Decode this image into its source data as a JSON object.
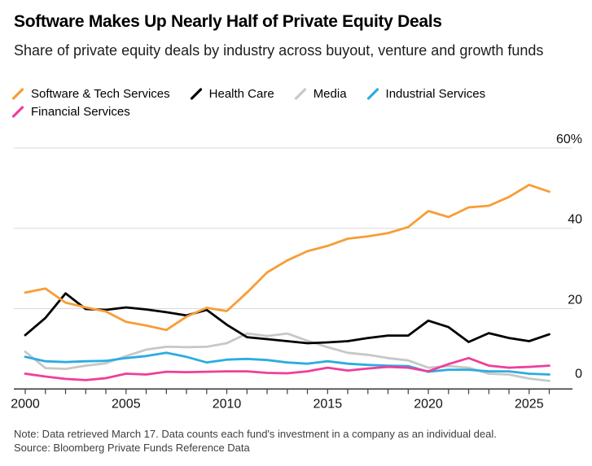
{
  "header": {
    "title": "Software Makes Up Nearly Half of Private Equity Deals",
    "subtitle": "Share of private equity deals by industry across buyout, venture and growth funds"
  },
  "chart_data": {
    "type": "line",
    "title": "Software Makes Up Nearly Half of Private Equity Deals",
    "x": [
      2000,
      2001,
      2002,
      2003,
      2004,
      2005,
      2006,
      2007,
      2008,
      2009,
      2010,
      2011,
      2012,
      2013,
      2014,
      2015,
      2016,
      2017,
      2018,
      2019,
      2020,
      2021,
      2022,
      2023,
      2024,
      2025,
      2026
    ],
    "series": [
      {
        "name": "Software & Tech Services",
        "color": "#F79D37",
        "values": [
          24,
          25,
          21.5,
          20.3,
          19.3,
          16.7,
          15.8,
          14.7,
          18,
          20.2,
          19.4,
          24,
          29,
          32,
          34.3,
          35.6,
          37.4,
          38,
          38.8,
          40.3,
          44.3,
          42.8,
          45.2,
          45.6,
          47.8,
          50.8,
          49.1
        ]
      },
      {
        "name": "Health Care",
        "color": "#000000",
        "values": [
          13.4,
          17.7,
          23.8,
          19.9,
          19.7,
          20.3,
          19.8,
          19.1,
          18.3,
          19.7,
          16,
          12.9,
          12.4,
          11.9,
          11.4,
          11.6,
          11.9,
          12.7,
          13.3,
          13.3,
          17,
          15.4,
          11.7,
          13.9,
          12.7,
          11.9,
          13.6
        ]
      },
      {
        "name": "Media",
        "color": "#C7C7C7",
        "values": [
          9.3,
          5.2,
          5,
          5.8,
          6.4,
          8.2,
          9.8,
          10.5,
          10.4,
          10.5,
          11.4,
          13.8,
          13.2,
          13.8,
          12,
          10.4,
          9,
          8.5,
          7.7,
          7.1,
          5.3,
          5.7,
          5.3,
          3.8,
          3.6,
          2.6,
          2
        ]
      },
      {
        "name": "Industrial Services",
        "color": "#2BACE2",
        "values": [
          8,
          6.9,
          6.7,
          6.9,
          7,
          7.7,
          8.2,
          9,
          8,
          6.6,
          7.3,
          7.5,
          7.2,
          6.6,
          6.3,
          6.9,
          6.3,
          6,
          5.8,
          5.7,
          4.3,
          4.8,
          4.8,
          4.4,
          4.4,
          3.8,
          3.6
        ]
      },
      {
        "name": "Financial Services",
        "color": "#EF3E9B",
        "values": [
          3.8,
          3.1,
          2.5,
          2.2,
          2.7,
          3.8,
          3.6,
          4.3,
          4.2,
          4.3,
          4.4,
          4.4,
          4,
          3.9,
          4.4,
          5.3,
          4.6,
          5.1,
          5.5,
          5.3,
          4.4,
          6.2,
          7.7,
          5.8,
          5.3,
          5.5,
          5.8
        ]
      }
    ],
    "ylim": [
      0,
      60
    ],
    "y_ticks": [
      0,
      20,
      40,
      60
    ],
    "y_tick_labels": [
      "0",
      "20",
      "40",
      "60%"
    ],
    "x_tick_years": [
      2000,
      2005,
      2010,
      2015,
      2020,
      2025
    ],
    "x_tick_labels": [
      "2000",
      "2005",
      "2010",
      "2015",
      "2020",
      "2025"
    ],
    "xlabel": "",
    "ylabel": "",
    "grid": "horizontal",
    "legend_position": "top"
  },
  "colors": {
    "background": "#FFFFFF",
    "gridline": "#D9D9D9",
    "axis": "#3D3D3D",
    "tick_label": "#111111",
    "note_text": "#3F3F3F"
  },
  "footer": {
    "note": "Note: Data retrieved March 17. Data counts each fund's investment in a company as an individual deal.",
    "source": "Source: Bloomberg Private Funds Reference Data"
  }
}
